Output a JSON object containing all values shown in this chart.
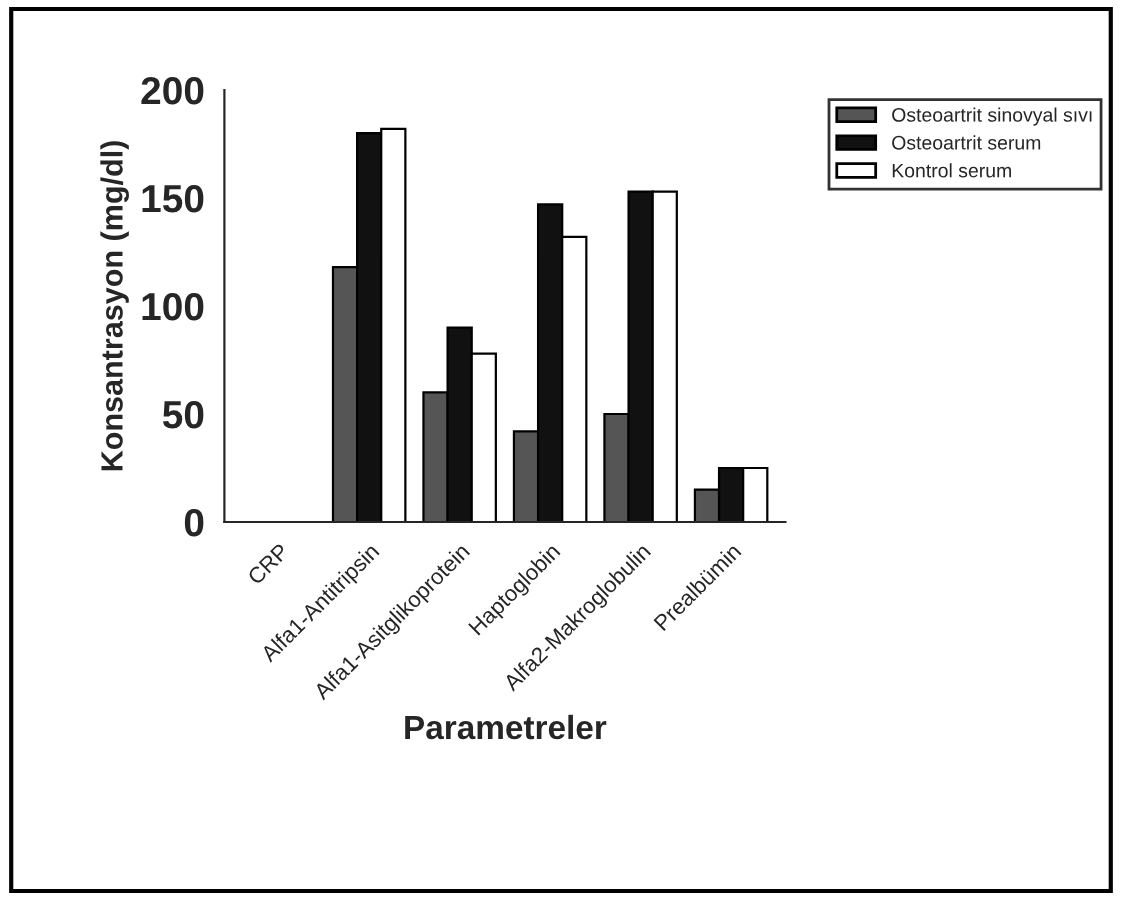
{
  "chart_data": {
    "type": "bar",
    "xlabel": "Parametreler",
    "ylabel": "Konsantrasyon (mg/dl)",
    "categories": [
      "CRP",
      "Alfa1-Antitripsin",
      "Alfa1-Asitglikoprotein",
      "Haptoglobin",
      "Alfa2-Makroglobulin",
      "Prealbümin"
    ],
    "series": [
      {
        "name": "Osteoartrit sinovyal sıvı",
        "color": "#555555",
        "values": [
          null,
          118,
          60,
          42,
          50,
          15
        ]
      },
      {
        "name": "Osteoartrit serum",
        "color": "#111111",
        "values": [
          null,
          180,
          90,
          147,
          153,
          25
        ]
      },
      {
        "name": "Kontrol serum",
        "color": "#ffffff",
        "values": [
          null,
          182,
          78,
          132,
          153,
          25
        ]
      }
    ],
    "ylim": [
      0,
      200
    ],
    "yticks": [
      0,
      50,
      100,
      150,
      200
    ],
    "grid": false,
    "legend": "top right"
  }
}
